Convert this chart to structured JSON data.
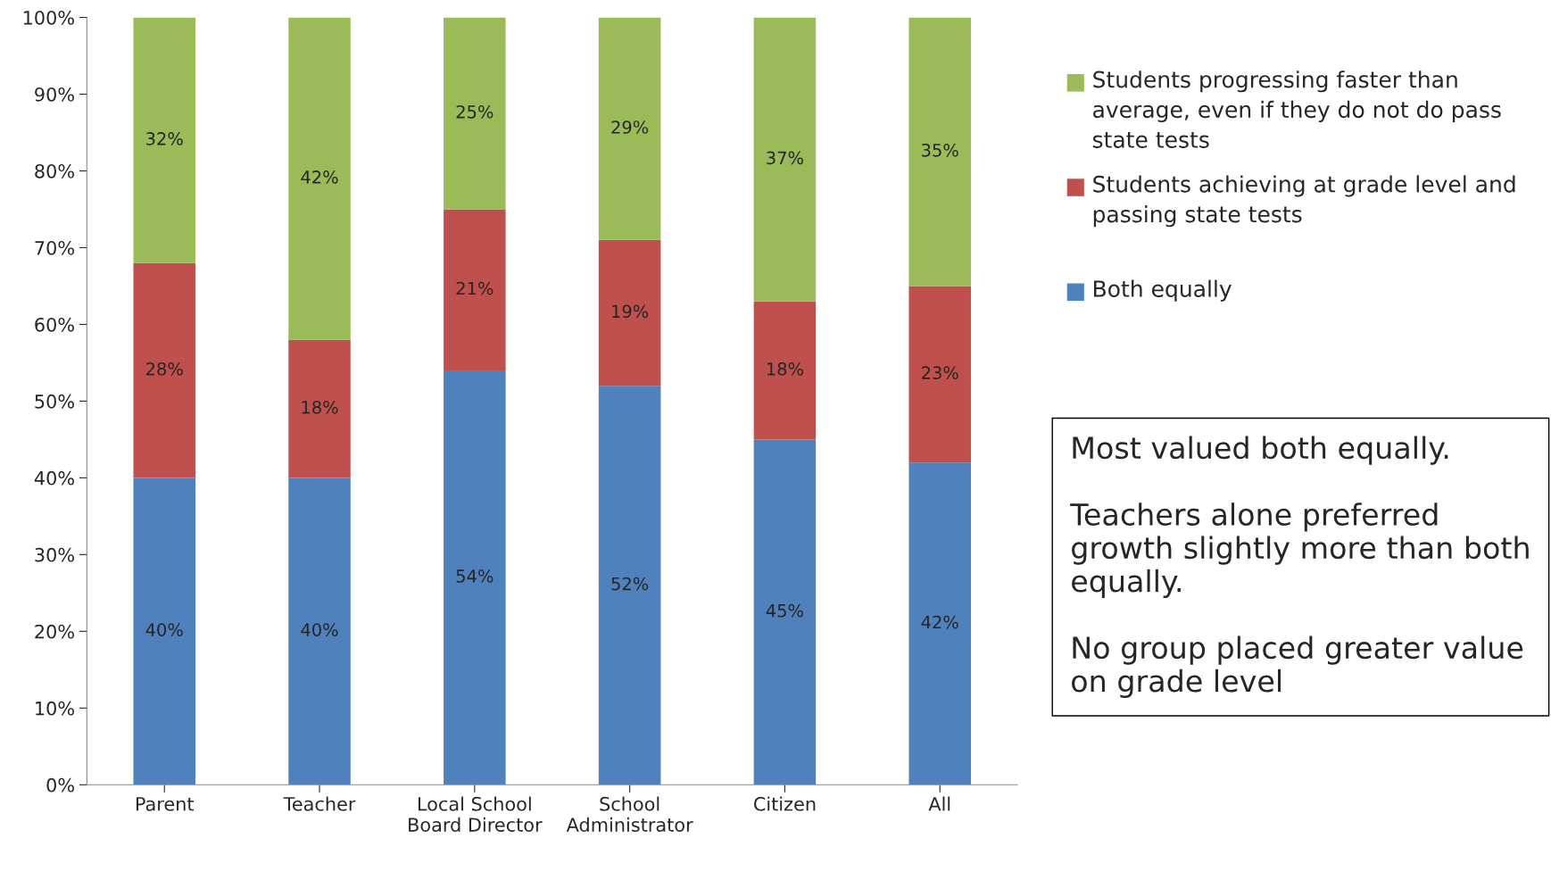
{
  "chart_data": {
    "type": "bar",
    "stacked": true,
    "grid": false,
    "legend": "right",
    "categories": [
      "Parent",
      "Teacher",
      "Local School\nBoard Director",
      "School\nAdministrator",
      "Citizen",
      "All"
    ],
    "series": [
      {
        "name": "Both equally",
        "color": "#4f81bd",
        "values": [
          40,
          40,
          54,
          52,
          45,
          42
        ],
        "value_labels": [
          "40%",
          "40%",
          "54%",
          "52%",
          "45%",
          "42%"
        ]
      },
      {
        "name": "Students achieving at grade level and passing state tests",
        "color": "#c0504d",
        "values": [
          28,
          18,
          21,
          19,
          18,
          23
        ],
        "value_labels": [
          "28%",
          "18%",
          "21%",
          "19%",
          "18%",
          "23%"
        ]
      },
      {
        "name": "Students progressing faster than average, even if they do not do pass state tests",
        "color": "#9bbb59",
        "values": [
          32,
          42,
          25,
          29,
          37,
          35
        ],
        "value_labels": [
          "32%",
          "42%",
          "25%",
          "29%",
          "37%",
          "35%"
        ]
      }
    ],
    "ylim": [
      0,
      100
    ],
    "yticks": [
      {
        "value": 0,
        "label": "0%"
      },
      {
        "value": 10,
        "label": "10%"
      },
      {
        "value": 20,
        "label": "20%"
      },
      {
        "value": 30,
        "label": "30%"
      },
      {
        "value": 40,
        "label": "40%"
      },
      {
        "value": 50,
        "label": "50%"
      },
      {
        "value": 60,
        "label": "60%"
      },
      {
        "value": 70,
        "label": "70%"
      },
      {
        "value": 80,
        "label": "80%"
      },
      {
        "value": 90,
        "label": "90%"
      },
      {
        "value": 100,
        "label": "100%"
      }
    ],
    "annotations": [
      "Most valued both equally.",
      "Teachers alone preferred growth slightly more than both equally.",
      "No group placed greater value on grade level"
    ]
  }
}
